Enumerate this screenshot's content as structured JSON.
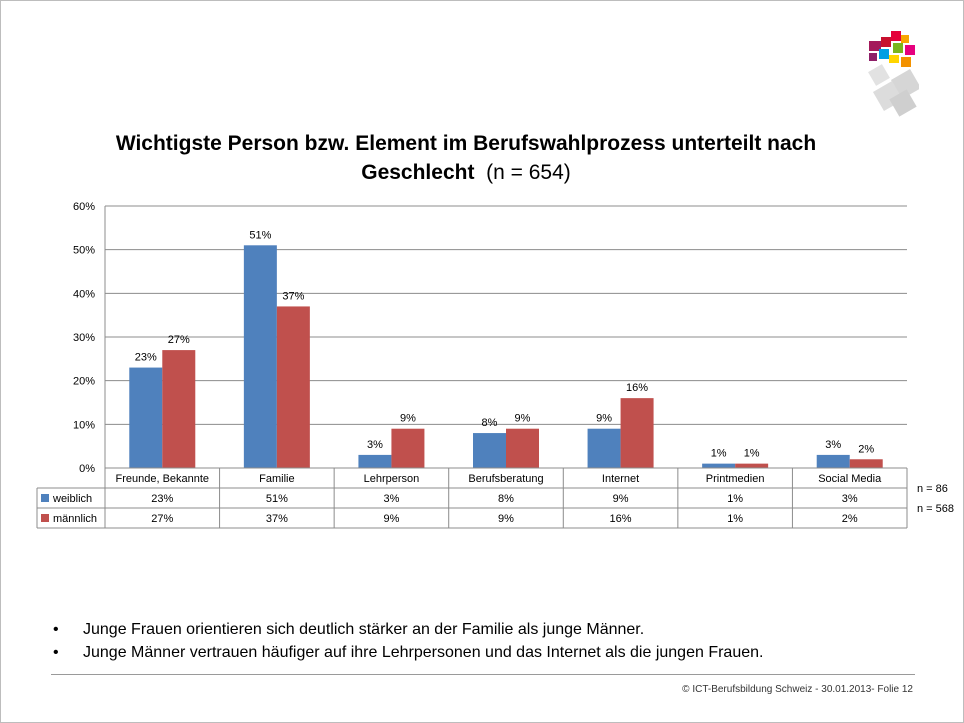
{
  "chart_data": {
    "type": "bar",
    "title": "Wichtigste Person bzw. Element im Berufswahlprozess unterteilt nach Geschlecht",
    "title_n": "(n = 654)",
    "categories": [
      "Freunde, Bekannte",
      "Familie",
      "Lehrperson",
      "Berufsberatung",
      "Internet",
      "Printmedien",
      "Social Media"
    ],
    "series": [
      {
        "name": "weiblich",
        "values": [
          23,
          51,
          3,
          8,
          9,
          1,
          3
        ],
        "labels": [
          "23%",
          "51%",
          "3%",
          "8%",
          "9%",
          "1%",
          "3%"
        ],
        "color": "#4f81bd",
        "n": "n = 86"
      },
      {
        "name": "männlich",
        "values": [
          27,
          37,
          9,
          9,
          16,
          1,
          2
        ],
        "labels": [
          "27%",
          "37%",
          "9%",
          "9%",
          "16%",
          "1%",
          "2%"
        ],
        "color": "#c0504d",
        "n": "n = 568"
      }
    ],
    "yticks": [
      "0%",
      "10%",
      "20%",
      "30%",
      "40%",
      "50%",
      "60%"
    ],
    "ylim": [
      0,
      60
    ],
    "grid": true,
    "legend": "data-table"
  },
  "bullets": [
    "Junge Frauen orientieren sich deutlich stärker an der Familie als junge Männer.",
    "Junge Männer vertrauen häufiger auf ihre Lehrpersonen und das Internet als die jungen Frauen."
  ],
  "bullet_symbol": "•",
  "footer": "© ICT-Berufsbildung Schweiz - 30.01.2013- Folie 12",
  "logo_icon": "ict-berufsbildung-logo-icon"
}
